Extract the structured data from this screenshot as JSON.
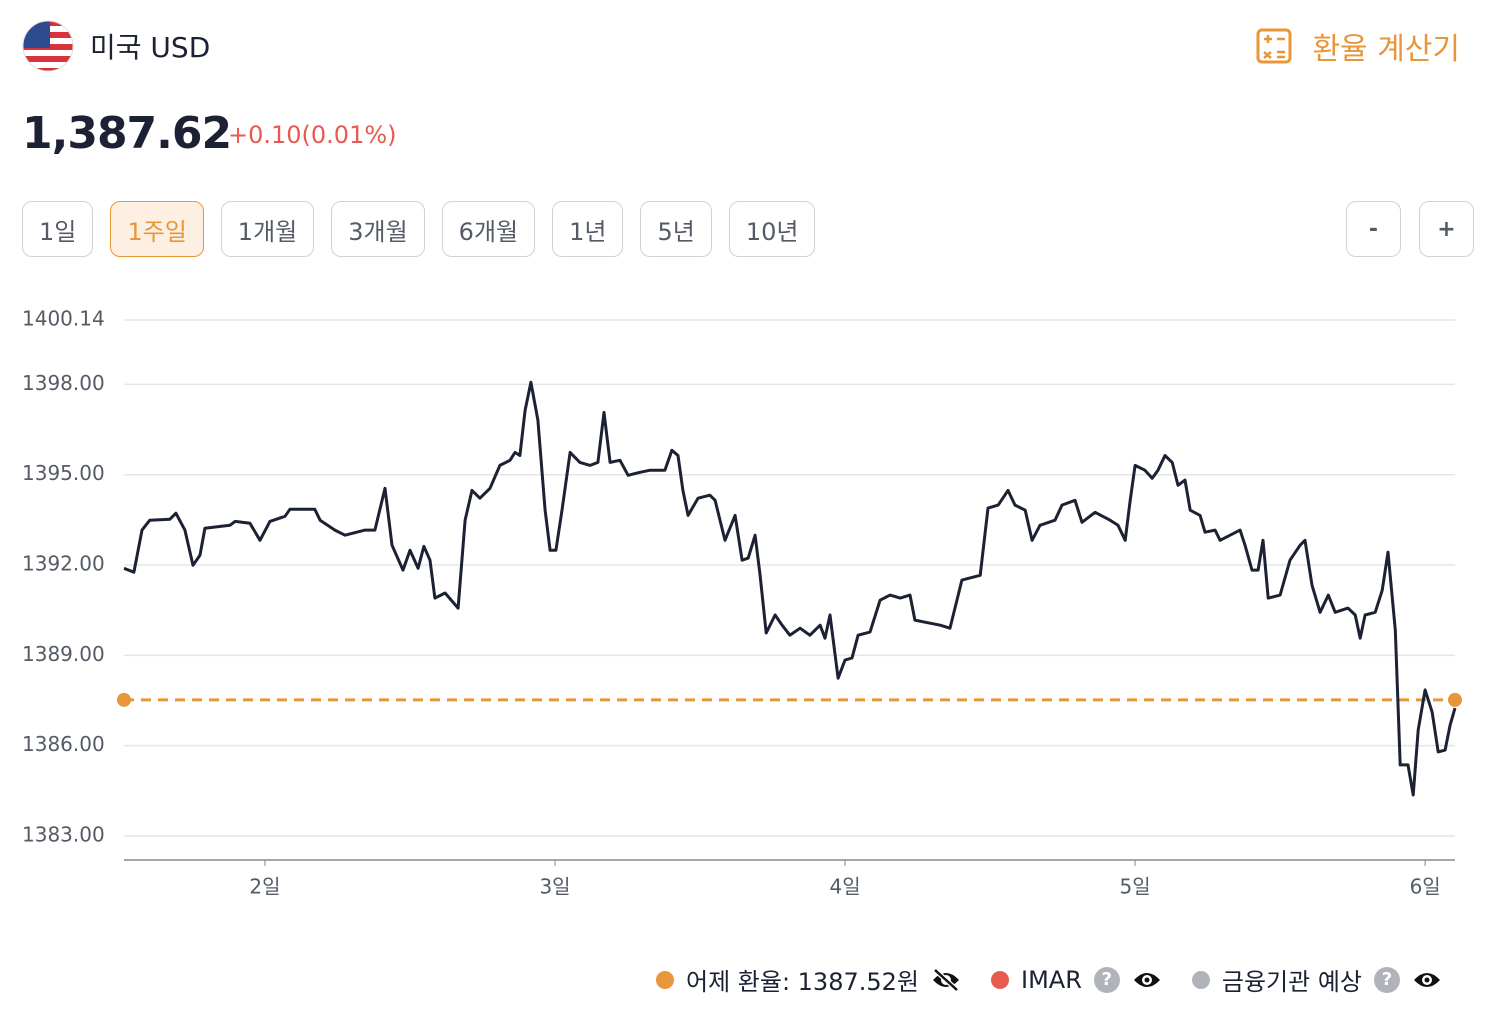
{
  "header": {
    "title": "미국 USD",
    "price": "1,387.62",
    "change": "+0.10(0.01%)",
    "calculator": "환율 계산기"
  },
  "ranges": {
    "items": [
      "1일",
      "1주일",
      "1개월",
      "3개월",
      "6개월",
      "1년",
      "5년",
      "10년"
    ],
    "selected_index": 1
  },
  "zoom": [
    "-",
    "+"
  ],
  "legend": [
    {
      "label": "어제 환율: 1387.52원",
      "color": "#e8963a",
      "help": null,
      "visible": false
    },
    {
      "label": "IMAR",
      "color": "#e85a50",
      "help": "?",
      "visible": true
    },
    {
      "label": "금융기관 예상",
      "color": "#b0b4ba",
      "help": "?",
      "visible": true
    }
  ],
  "chart_data": {
    "type": "line",
    "xlim": [
      1.514,
      6.103
    ],
    "xticks": [
      {
        "value": 2,
        "label": "2일"
      },
      {
        "value": 3,
        "label": "3일"
      },
      {
        "value": 4,
        "label": "4일"
      },
      {
        "value": 5,
        "label": "5일"
      },
      {
        "value": 6,
        "label": "6일"
      }
    ],
    "ylim": [
      1382.2,
      1400.14
    ],
    "yticks": [
      {
        "value": 1383,
        "label": "1383.00"
      },
      {
        "value": 1386,
        "label": "1386.00"
      },
      {
        "value": 1389,
        "label": "1389.00"
      },
      {
        "value": 1392,
        "label": "1392.00"
      },
      {
        "value": 1395,
        "label": "1395.00"
      },
      {
        "value": 1398,
        "label": "1398.00"
      },
      1400.14
    ],
    "grid": true,
    "reference_line": {
      "value": 1387.52,
      "color": "#e8963a"
    },
    "series": [
      {
        "color": "#1c2233",
        "x": [
          1.514,
          1.548,
          1.576,
          1.603,
          1.672,
          1.693,
          1.724,
          1.752,
          1.776,
          1.793,
          1.879,
          1.897,
          1.948,
          1.983,
          2.017,
          2.069,
          2.086,
          2.172,
          2.19,
          2.241,
          2.276,
          2.345,
          2.379,
          2.414,
          2.438,
          2.476,
          2.5,
          2.528,
          2.548,
          2.569,
          2.586,
          2.621,
          2.666,
          2.69,
          2.714,
          2.741,
          2.776,
          2.81,
          2.845,
          2.862,
          2.879,
          2.897,
          2.917,
          2.941,
          2.966,
          2.983,
          3.003,
          3.024,
          3.052,
          3.086,
          3.121,
          3.148,
          3.169,
          3.19,
          3.224,
          3.252,
          3.293,
          3.328,
          3.379,
          3.403,
          3.424,
          3.441,
          3.459,
          3.493,
          3.534,
          3.552,
          3.569,
          3.586,
          3.621,
          3.645,
          3.666,
          3.69,
          3.707,
          3.728,
          3.759,
          3.783,
          3.81,
          3.845,
          3.879,
          3.914,
          3.931,
          3.948,
          3.976,
          4.0,
          4.024,
          4.045,
          4.086,
          4.121,
          4.155,
          4.19,
          4.224,
          4.241,
          4.276,
          4.328,
          4.362,
          4.403,
          4.466,
          4.493,
          4.528,
          4.562,
          4.586,
          4.621,
          4.645,
          4.672,
          4.724,
          4.748,
          4.793,
          4.817,
          4.862,
          4.914,
          4.941,
          4.966,
          4.983,
          5.0,
          5.034,
          5.059,
          5.079,
          5.103,
          5.128,
          5.148,
          5.172,
          5.19,
          5.224,
          5.241,
          5.276,
          5.293,
          5.362,
          5.379,
          5.403,
          5.424,
          5.441,
          5.459,
          5.5,
          5.534,
          5.569,
          5.586,
          5.61,
          5.638,
          5.666,
          5.69,
          5.734,
          5.759,
          5.776,
          5.793,
          5.828,
          5.852,
          5.872,
          5.897,
          5.914,
          5.941,
          5.959,
          5.976,
          6.0,
          6.024,
          6.045,
          6.069,
          6.086,
          6.103
        ],
        "values": [
          1391.89,
          1391.76,
          1393.16,
          1393.49,
          1393.52,
          1393.72,
          1393.16,
          1391.99,
          1392.33,
          1393.22,
          1393.32,
          1393.45,
          1393.39,
          1392.82,
          1393.45,
          1393.62,
          1393.85,
          1393.85,
          1393.49,
          1393.16,
          1392.99,
          1393.16,
          1393.16,
          1394.55,
          1392.66,
          1391.83,
          1392.49,
          1391.89,
          1392.62,
          1392.16,
          1390.9,
          1391.07,
          1390.57,
          1393.49,
          1394.48,
          1394.22,
          1394.55,
          1395.31,
          1395.48,
          1395.74,
          1395.64,
          1397.14,
          1398.07,
          1396.81,
          1393.82,
          1392.49,
          1392.49,
          1393.82,
          1395.74,
          1395.41,
          1395.31,
          1395.41,
          1397.07,
          1395.41,
          1395.48,
          1394.98,
          1395.08,
          1395.15,
          1395.15,
          1395.81,
          1395.64,
          1394.48,
          1393.65,
          1394.22,
          1394.32,
          1394.15,
          1393.49,
          1392.82,
          1393.65,
          1392.16,
          1392.23,
          1392.99,
          1391.66,
          1389.74,
          1390.34,
          1390.0,
          1389.67,
          1389.9,
          1389.67,
          1390.0,
          1389.57,
          1390.34,
          1388.24,
          1388.84,
          1388.91,
          1389.67,
          1389.77,
          1390.83,
          1391.0,
          1390.9,
          1391.0,
          1390.17,
          1390.1,
          1390.0,
          1389.9,
          1391.5,
          1391.66,
          1393.89,
          1393.99,
          1394.48,
          1393.99,
          1393.82,
          1392.82,
          1393.32,
          1393.49,
          1393.99,
          1394.15,
          1393.42,
          1393.75,
          1393.49,
          1393.32,
          1392.82,
          1394.15,
          1395.31,
          1395.15,
          1394.88,
          1395.15,
          1395.64,
          1395.41,
          1394.65,
          1394.82,
          1393.82,
          1393.65,
          1393.09,
          1393.16,
          1392.82,
          1393.16,
          1392.66,
          1391.83,
          1391.83,
          1392.82,
          1390.9,
          1391.0,
          1392.16,
          1392.66,
          1392.82,
          1391.33,
          1390.43,
          1391.0,
          1390.43,
          1390.57,
          1390.34,
          1389.57,
          1390.34,
          1390.43,
          1391.16,
          1392.43,
          1389.84,
          1385.36,
          1385.36,
          1384.36,
          1386.52,
          1387.85,
          1387.12,
          1385.79,
          1385.85,
          1386.68,
          1387.25
        ]
      }
    ]
  }
}
